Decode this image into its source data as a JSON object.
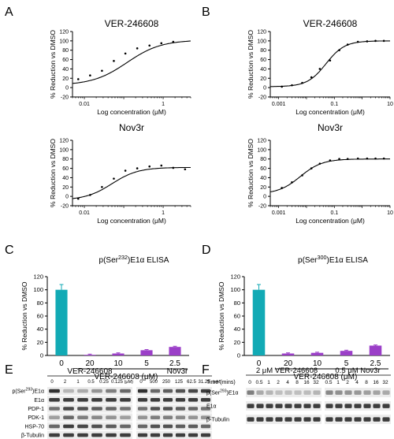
{
  "panels": {
    "A": {
      "letter": "A"
    },
    "B": {
      "letter": "B"
    },
    "C": {
      "letter": "C"
    },
    "D": {
      "letter": "D"
    },
    "E": {
      "letter": "E"
    },
    "F": {
      "letter": "F"
    }
  },
  "chart_data": [
    {
      "id": "A-top",
      "type": "line",
      "title": "VER-246608",
      "xlabel": "Log concentration (μM)",
      "ylabel": "% Reduction vs DMSO",
      "xscale": "log",
      "xlim": [
        0.005,
        5
      ],
      "ylim": [
        -20,
        120
      ],
      "xticks": [
        {
          "v": 0.01,
          "label": "0.01"
        },
        {
          "v": 1,
          "label": "1"
        }
      ],
      "yticks": [
        -20,
        0,
        20,
        40,
        60,
        80,
        100,
        120
      ],
      "fit": {
        "bottom": 5,
        "top": 102,
        "ec50": 0.12,
        "hill": 1.0
      },
      "points": [
        [
          0.007,
          18
        ],
        [
          0.014,
          26
        ],
        [
          0.028,
          36
        ],
        [
          0.056,
          57
        ],
        [
          0.11,
          73
        ],
        [
          0.22,
          84
        ],
        [
          0.45,
          90
        ],
        [
          0.9,
          95
        ],
        [
          1.8,
          98
        ]
      ]
    },
    {
      "id": "A-bottom",
      "type": "line",
      "title": "Nov3r",
      "xlabel": "Log concentration (μM)",
      "ylabel": "% Reduction vs DMSO",
      "xscale": "log",
      "xlim": [
        0.005,
        5
      ],
      "ylim": [
        -20,
        120
      ],
      "xticks": [
        {
          "v": 0.01,
          "label": "0.01"
        },
        {
          "v": 1,
          "label": "1"
        }
      ],
      "yticks": [
        -20,
        0,
        20,
        40,
        60,
        80,
        100,
        120
      ],
      "fit": {
        "bottom": -8,
        "top": 62,
        "ec50": 0.05,
        "hill": 1.3
      },
      "points": [
        [
          0.007,
          -5
        ],
        [
          0.014,
          3
        ],
        [
          0.028,
          20
        ],
        [
          0.056,
          38
        ],
        [
          0.11,
          55
        ],
        [
          0.22,
          60
        ],
        [
          0.45,
          64
        ],
        [
          0.9,
          66
        ],
        [
          1.8,
          61
        ],
        [
          3.6,
          58
        ]
      ]
    },
    {
      "id": "B-top",
      "type": "line",
      "title": "VER-246608",
      "xlabel": "Log concentration (μM)",
      "ylabel": "% Reduction vs DMSO",
      "xscale": "log",
      "xlim": [
        0.0005,
        10
      ],
      "ylim": [
        -20,
        120
      ],
      "xticks": [
        {
          "v": 0.001,
          "label": "0.001"
        },
        {
          "v": 0.1,
          "label": "0.1"
        },
        {
          "v": 10,
          "label": "10"
        }
      ],
      "yticks": [
        -20,
        0,
        20,
        40,
        60,
        80,
        100,
        120
      ],
      "fit": {
        "bottom": 2,
        "top": 100,
        "ec50": 0.05,
        "hill": 1.3
      },
      "points": [
        [
          0.0013,
          2
        ],
        [
          0.003,
          5
        ],
        [
          0.007,
          10
        ],
        [
          0.015,
          22
        ],
        [
          0.03,
          40
        ],
        [
          0.07,
          58
        ],
        [
          0.15,
          80
        ],
        [
          0.3,
          92
        ],
        [
          0.7,
          98
        ],
        [
          1.5,
          99
        ],
        [
          3,
          100
        ],
        [
          6,
          100
        ]
      ]
    },
    {
      "id": "B-bottom",
      "type": "line",
      "title": "Nov3r",
      "xlabel": "Log concentration (μM)",
      "ylabel": "% Reduction vs DMSO",
      "xscale": "log",
      "xlim": [
        0.0005,
        10
      ],
      "ylim": [
        -20,
        120
      ],
      "xticks": [
        {
          "v": 0.001,
          "label": "0.001"
        },
        {
          "v": 0.1,
          "label": "0.1"
        },
        {
          "v": 10,
          "label": "10"
        }
      ],
      "yticks": [
        -20,
        0,
        20,
        40,
        60,
        80,
        100,
        120
      ],
      "fit": {
        "bottom": 5,
        "top": 80,
        "ec50": 0.006,
        "hill": 1.1
      },
      "points": [
        [
          0.0013,
          18
        ],
        [
          0.003,
          30
        ],
        [
          0.007,
          45
        ],
        [
          0.015,
          60
        ],
        [
          0.03,
          70
        ],
        [
          0.07,
          77
        ],
        [
          0.15,
          80
        ],
        [
          0.3,
          80
        ],
        [
          0.7,
          81
        ],
        [
          1.5,
          81
        ],
        [
          3,
          81
        ],
        [
          6,
          81
        ]
      ]
    },
    {
      "id": "C",
      "type": "bar",
      "title": "p(Ser232)E1α ELISA",
      "title_parts": {
        "pre": "p(Ser",
        "sup": "232",
        "post": ")E1α ELISA"
      },
      "xlabel": "VER-246608 (μM)",
      "ylabel": "% Reduction vs DMSO",
      "ylim": [
        0,
        120
      ],
      "yticks": [
        0,
        20,
        40,
        60,
        80,
        100,
        120
      ],
      "categories": [
        "0",
        "20",
        "10",
        "5",
        "2.5"
      ],
      "values": [
        100,
        1,
        3,
        8,
        13
      ],
      "errors": [
        8,
        1,
        1,
        1,
        1
      ],
      "colors": [
        "#12aab5",
        "#9b3fc8",
        "#9b3fc8",
        "#9b3fc8",
        "#9b3fc8"
      ]
    },
    {
      "id": "D",
      "type": "bar",
      "title": "p(Ser300)E1α ELISA",
      "title_parts": {
        "pre": "p(Ser",
        "sup": "300",
        "post": ")E1α ELISA"
      },
      "xlabel": "VER-246608 (μM)",
      "ylabel": "% Reduction vs DMSO",
      "ylim": [
        0,
        120
      ],
      "yticks": [
        0,
        20,
        40,
        60,
        80,
        100,
        120
      ],
      "categories": [
        "0",
        "20",
        "10",
        "5",
        "2.5"
      ],
      "values": [
        100,
        3,
        4,
        7,
        15
      ],
      "errors": [
        8,
        1,
        1,
        1,
        1
      ],
      "colors": [
        "#12aab5",
        "#9b3fc8",
        "#9b3fc8",
        "#9b3fc8",
        "#9b3fc8"
      ]
    }
  ],
  "blot_E": {
    "group1": {
      "label": "VER-246608",
      "lanes": [
        "0",
        "2",
        "1",
        "0.5",
        "0.25",
        "0.125"
      ],
      "unit": "(μM)"
    },
    "group2": {
      "label": "Nov3r",
      "lanes": [
        "0",
        "500",
        "250",
        "125",
        "62.5",
        "31.25"
      ],
      "unit": "(nM)"
    },
    "rows": [
      {
        "pre": "p(Ser",
        "sup": "293",
        "post": ")E1α"
      },
      {
        "pre": "E1α",
        "sup": "",
        "post": ""
      },
      {
        "pre": "PDP-1",
        "sup": "",
        "post": ""
      },
      {
        "pre": "PDK-1",
        "sup": "",
        "post": ""
      },
      {
        "pre": "HSP-70",
        "sup": "",
        "post": ""
      },
      {
        "pre": "β-Tubulin",
        "sup": "",
        "post": ""
      }
    ]
  },
  "blot_F": {
    "time_label": "Time (mins)",
    "group1": {
      "label": "2 μM VER-246608",
      "lanes": [
        "0",
        "0.5",
        "1",
        "2",
        "4",
        "8",
        "16",
        "32"
      ]
    },
    "group2": {
      "label": "0.5 μM Nov3r",
      "lanes": [
        "0.5",
        "1",
        "2",
        "4",
        "8",
        "16",
        "32"
      ]
    },
    "rows": [
      {
        "pre": "p(Ser",
        "sup": "293",
        "post": ")E1α"
      },
      {
        "pre": "E1α",
        "sup": "",
        "post": ""
      },
      {
        "pre": "β-Tubulin",
        "sup": "",
        "post": ""
      }
    ]
  }
}
